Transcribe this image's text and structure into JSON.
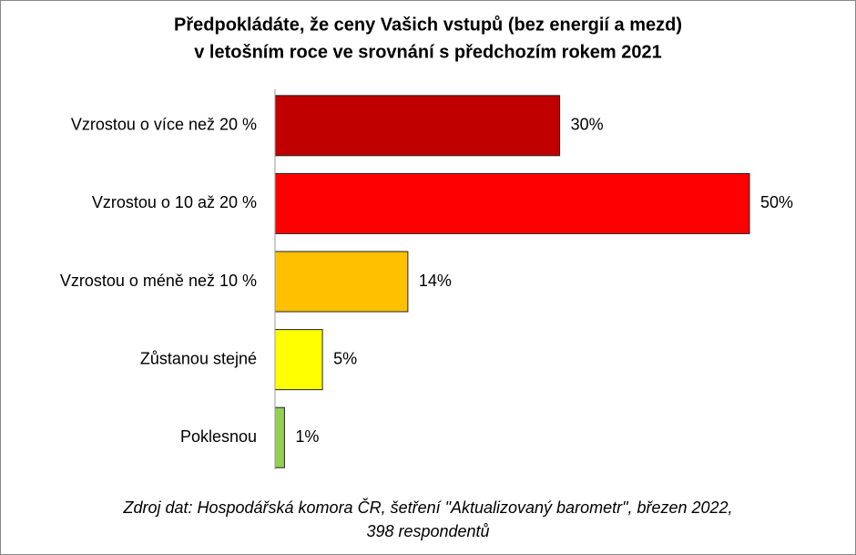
{
  "chart_data": {
    "type": "bar",
    "orientation": "horizontal",
    "title": [
      "Předpokládáte, že ceny Vašich vstupů (bez energií a mezd)",
      "v letošním roce ve srovnání s předchozím rokem 2021"
    ],
    "categories": [
      "Vzrostou o více než 20 %",
      "Vzrostou o 10 až 20 %",
      "Vzrostou o méně než 10 %",
      "Zůstanou stejné",
      "Poklesnou"
    ],
    "values": [
      30,
      50,
      14,
      5,
      1
    ],
    "value_labels": [
      "30%",
      "50%",
      "14%",
      "5%",
      "1%"
    ],
    "colors": [
      "#c00000",
      "#ff0000",
      "#ffc000",
      "#ffff00",
      "#92d050"
    ],
    "xlim": [
      0,
      50
    ],
    "note": [
      "Zdroj dat: Hospodářská komora ČR, šetření \"Aktualizovaný barometr\", březen 2022,",
      "398 respondentů"
    ]
  }
}
